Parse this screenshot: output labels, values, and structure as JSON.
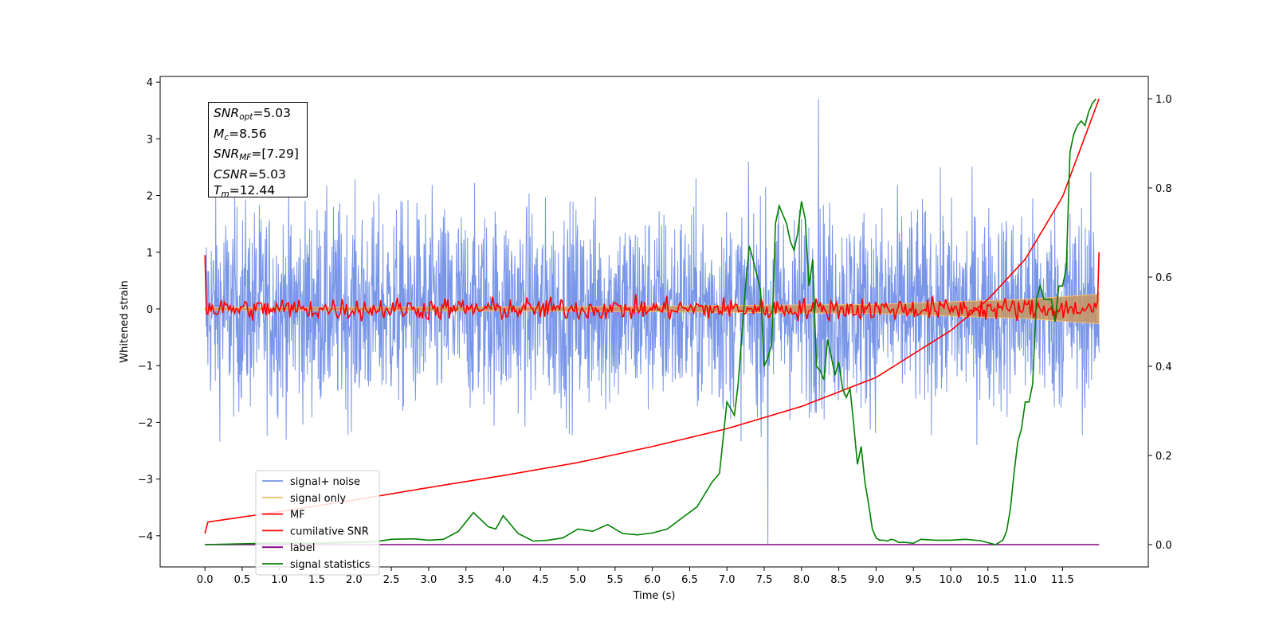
{
  "chart_data": {
    "type": "line",
    "xlabel": "Time (s)",
    "ylabel": "Whitened strain",
    "xlim": [
      -0.6,
      12.65
    ],
    "ylim": [
      -4.55,
      4.1
    ],
    "y2lim": [
      -0.05,
      1.05
    ],
    "x_ticks": [
      "0.0",
      "0.5",
      "1.0",
      "1.5",
      "2.0",
      "2.5",
      "3.0",
      "3.5",
      "4.0",
      "4.5",
      "5.0",
      "5.5",
      "6.0",
      "6.5",
      "7.0",
      "7.5",
      "8.0",
      "8.5",
      "9.0",
      "9.5",
      "10.0",
      "10.5",
      "11.0",
      "11.5"
    ],
    "y_ticks": [
      "4",
      "3",
      "2",
      "1",
      "0",
      "−1",
      "−2",
      "−3",
      "−4"
    ],
    "y2_ticks": [
      "1.0",
      "0.8",
      "0.6",
      "0.4",
      "0.2",
      "0.0"
    ],
    "legend_position": "lower-left",
    "series": [
      {
        "name": "signal+ noise",
        "color": "#7895e8",
        "axis": "left",
        "x_range": [
          0.0,
          11.99
        ],
        "amplitude_std": 0.9,
        "peak_max": 3.7,
        "peak_min": -4.15
      },
      {
        "name": "signal only",
        "color": "#f2c27a",
        "axis": "left",
        "x": [
          0.0,
          5.0,
          9.0,
          11.0,
          11.99
        ],
        "envelope": [
          0.02,
          0.04,
          0.08,
          0.17,
          0.26
        ]
      },
      {
        "name": "MF",
        "color": "#ff0000",
        "axis": "left",
        "x_range": [
          0.0,
          11.99
        ],
        "start_value": 0.95,
        "end_value": 1.0,
        "amplitude_std": 0.1
      },
      {
        "name": "cumilative SNR",
        "color": "#ff0000",
        "axis": "right",
        "x": [
          0.0,
          0.01,
          1.0,
          2.0,
          3.0,
          4.0,
          5.0,
          6.0,
          7.0,
          8.0,
          9.0,
          10.0,
          10.5,
          11.0,
          11.5,
          11.99
        ],
        "y": [
          0.025,
          0.05,
          0.074,
          0.1,
          0.128,
          0.155,
          0.184,
          0.22,
          0.26,
          0.31,
          0.375,
          0.48,
          0.55,
          0.64,
          0.78,
          1.0
        ]
      },
      {
        "name": "label",
        "color": "#800080",
        "axis": "right",
        "x": [
          0.0,
          11.99
        ],
        "y": [
          0.0,
          0.0
        ]
      },
      {
        "name": "signal statistics",
        "color": "#008000",
        "axis": "right",
        "x": [
          0.0,
          0.5,
          1.0,
          1.5,
          2.0,
          2.3,
          2.5,
          2.8,
          3.0,
          3.2,
          3.4,
          3.6,
          3.8,
          3.9,
          4.0,
          4.2,
          4.4,
          4.6,
          4.8,
          5.0,
          5.2,
          5.4,
          5.6,
          5.8,
          6.0,
          6.2,
          6.4,
          6.6,
          6.8,
          6.9,
          7.0,
          7.1,
          7.15,
          7.25,
          7.3,
          7.35,
          7.45,
          7.5,
          7.55,
          7.6,
          7.65,
          7.7,
          7.75,
          7.8,
          7.85,
          7.9,
          7.95,
          8.0,
          8.05,
          8.1,
          8.15,
          8.2,
          8.25,
          8.3,
          8.35,
          8.4,
          8.45,
          8.5,
          8.55,
          8.6,
          8.65,
          8.7,
          8.75,
          8.8,
          8.85,
          8.9,
          8.95,
          9.0,
          9.05,
          9.1,
          9.15,
          9.2,
          9.25,
          9.3,
          9.4,
          9.5,
          9.6,
          9.8,
          10.0,
          10.2,
          10.4,
          10.6,
          10.7,
          10.75,
          10.8,
          10.85,
          10.9,
          10.95,
          11.0,
          11.05,
          11.1,
          11.15,
          11.2,
          11.25,
          11.3,
          11.35,
          11.4,
          11.45,
          11.5,
          11.55,
          11.6,
          11.65,
          11.7,
          11.75,
          11.8,
          11.85,
          11.9,
          11.95
        ],
        "y": [
          0.0,
          0.002,
          0.004,
          0.003,
          0.005,
          0.007,
          0.012,
          0.013,
          0.01,
          0.012,
          0.03,
          0.072,
          0.04,
          0.035,
          0.065,
          0.025,
          0.008,
          0.01,
          0.015,
          0.035,
          0.03,
          0.045,
          0.025,
          0.022,
          0.026,
          0.035,
          0.06,
          0.085,
          0.14,
          0.16,
          0.32,
          0.29,
          0.36,
          0.58,
          0.67,
          0.64,
          0.57,
          0.4,
          0.42,
          0.45,
          0.72,
          0.76,
          0.74,
          0.72,
          0.68,
          0.66,
          0.7,
          0.77,
          0.73,
          0.58,
          0.64,
          0.4,
          0.39,
          0.37,
          0.46,
          0.42,
          0.38,
          0.41,
          0.35,
          0.33,
          0.35,
          0.27,
          0.18,
          0.22,
          0.14,
          0.09,
          0.035,
          0.015,
          0.01,
          0.01,
          0.008,
          0.012,
          0.01,
          0.005,
          0.005,
          0.003,
          0.012,
          0.01,
          0.01,
          0.012,
          0.009,
          0.0,
          0.01,
          0.03,
          0.08,
          0.16,
          0.23,
          0.26,
          0.32,
          0.32,
          0.36,
          0.55,
          0.58,
          0.55,
          0.55,
          0.55,
          0.5,
          0.58,
          0.58,
          0.62,
          0.88,
          0.92,
          0.94,
          0.95,
          0.94,
          0.97,
          0.99,
          1.0
        ]
      }
    ]
  },
  "info_box": {
    "snr_opt_sym": "SNR",
    "snr_opt_sub": "opt",
    "snr_opt_val": "=5.03",
    "mc_sym": "M",
    "mc_sub": "c",
    "mc_val": "=8.56",
    "snr_mf_sym": "SNR",
    "snr_mf_sub": "MF",
    "snr_mf_val": "=[7.29]",
    "csnr_sym": "CSNR",
    "csnr_val": "=5.03",
    "tm_sym": "T",
    "tm_sub": "m",
    "tm_val": "=12.44"
  }
}
